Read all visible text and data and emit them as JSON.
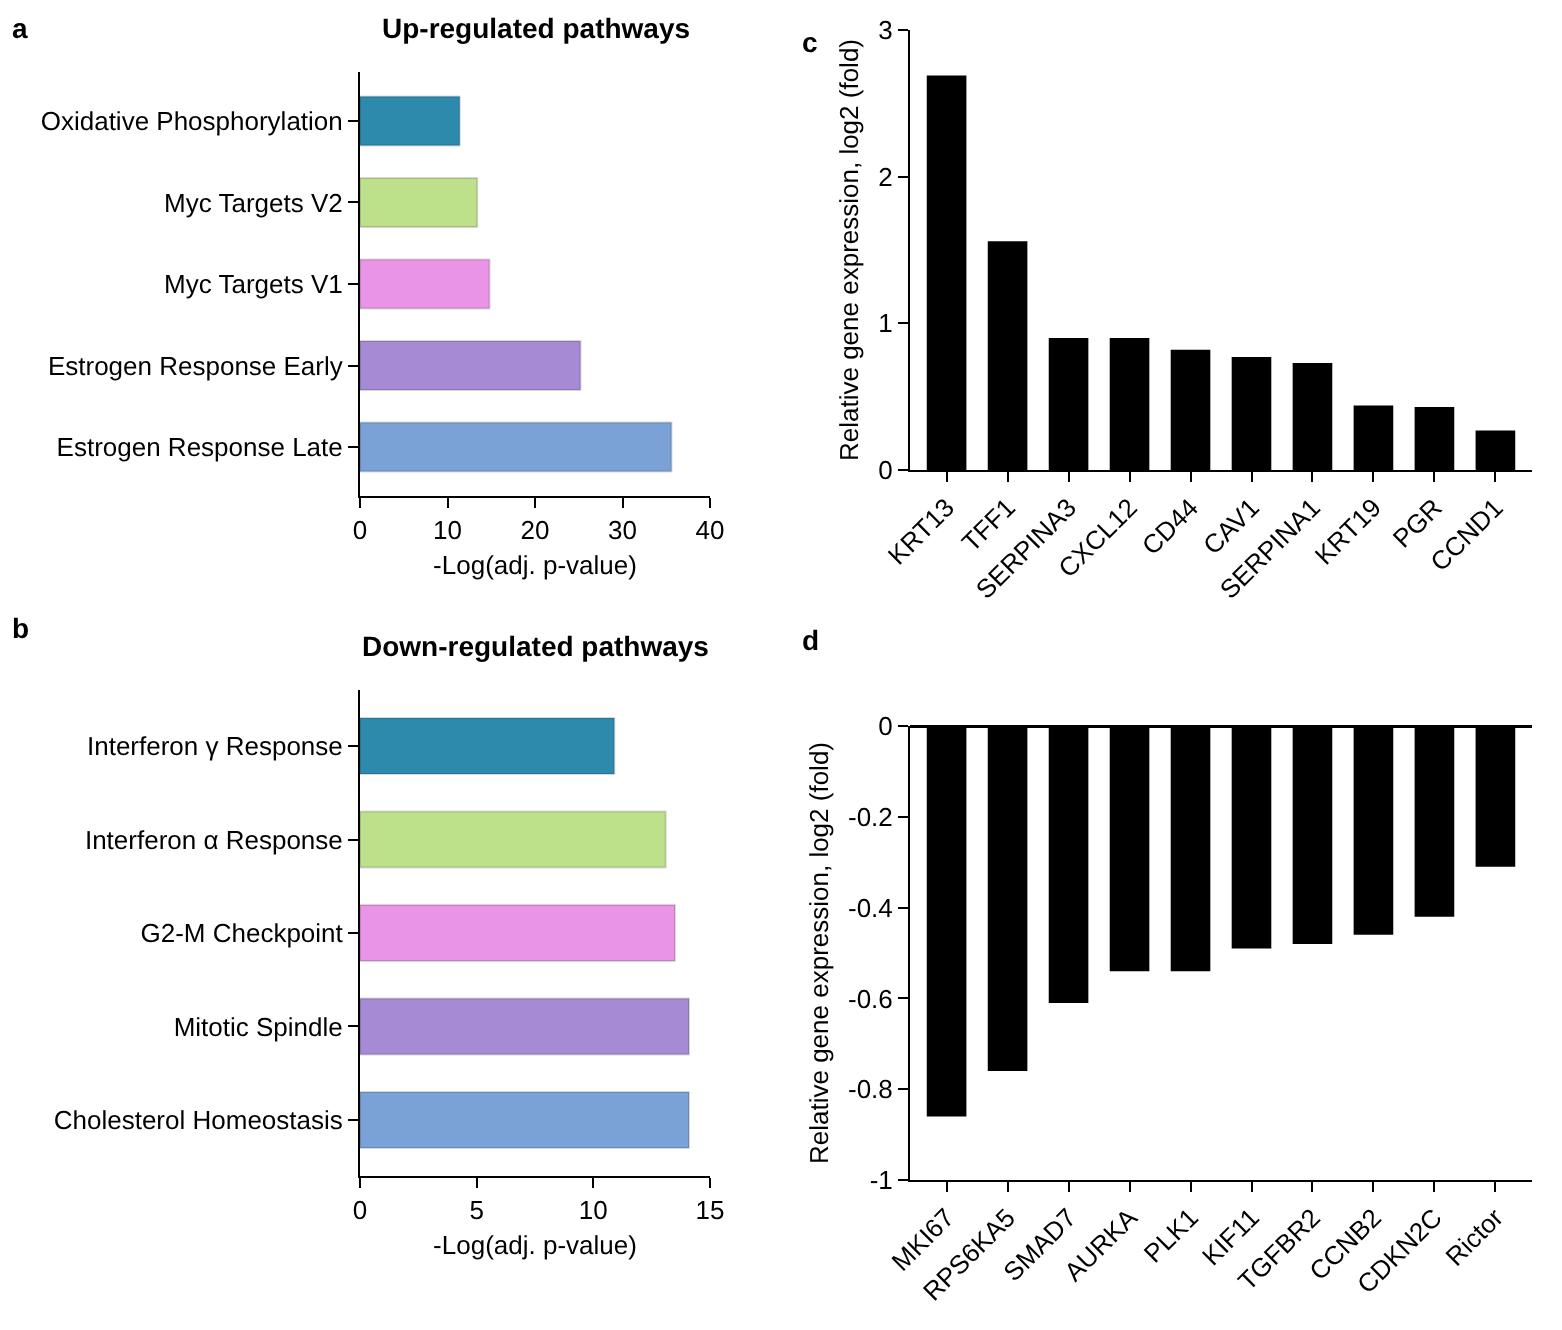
{
  "chart_data": [
    {
      "type": "bar",
      "orientation": "horizontal",
      "title": "Up-regulated pathways",
      "xlabel": "-Log(adj. p-value)",
      "annotations": [
        "a"
      ],
      "categories": [
        "Oxidative Phosphorylation",
        "Myc Targets V2",
        "Myc Targets V1",
        "Estrogen Response Early",
        "Estrogen Response Late"
      ],
      "values": [
        11.4,
        13.4,
        14.8,
        25.2,
        35.6
      ],
      "colors": [
        "#2e8aad",
        "#bde08a",
        "#e994e6",
        "#a68ad4",
        "#7ba2d6"
      ],
      "xlim": [
        0,
        40
      ],
      "xticks": [
        0,
        10,
        20,
        30,
        40
      ],
      "grid": false
    },
    {
      "type": "bar",
      "orientation": "horizontal",
      "title": "Down-regulated pathways",
      "xlabel": "-Log(adj. p-value)",
      "annotations": [
        "b"
      ],
      "categories": [
        "Interferon γ Response",
        "Interferon α Response",
        "G2-M Checkpoint",
        "Mitotic Spindle",
        "Cholesterol Homeostasis"
      ],
      "values": [
        10.9,
        13.1,
        13.5,
        14.1,
        14.1
      ],
      "colors": [
        "#2e8aad",
        "#bde08a",
        "#e994e6",
        "#a68ad4",
        "#7ba2d6"
      ],
      "xlim": [
        0,
        15
      ],
      "xticks": [
        0,
        5,
        10,
        15
      ],
      "grid": false
    },
    {
      "type": "bar",
      "ylabel": "Relative gene expression, log2 (fold)",
      "annotations": [
        "c"
      ],
      "categories": [
        "KRT13",
        "TFF1",
        "SERPINA3",
        "CXCL12",
        "CD44",
        "CAV1",
        "SERPINA1",
        "KRT19",
        "PGR",
        "CCND1"
      ],
      "values": [
        2.69,
        1.56,
        0.9,
        0.9,
        0.82,
        0.77,
        0.73,
        0.44,
        0.43,
        0.27
      ],
      "color": "#000000",
      "ylim": [
        0,
        3
      ],
      "yticks": [
        0,
        1,
        2,
        3
      ],
      "grid": false
    },
    {
      "type": "bar",
      "ylabel": "Relative gene expression, log2 (fold)",
      "annotations": [
        "d"
      ],
      "categories": [
        "MKI67",
        "RPS6KA5",
        "SMAD7",
        "AURKA",
        "PLK1",
        "KIF11",
        "TGFBR2",
        "CCNB2",
        "CDKN2C",
        "Rictor"
      ],
      "values": [
        -0.86,
        -0.76,
        -0.61,
        -0.54,
        -0.54,
        -0.49,
        -0.48,
        -0.46,
        -0.42,
        -0.31
      ],
      "color": "#000000",
      "ylim": [
        -1,
        0
      ],
      "yticks": [
        -1,
        -0.8,
        -0.6,
        -0.4,
        -0.2,
        0
      ],
      "grid": false
    }
  ]
}
